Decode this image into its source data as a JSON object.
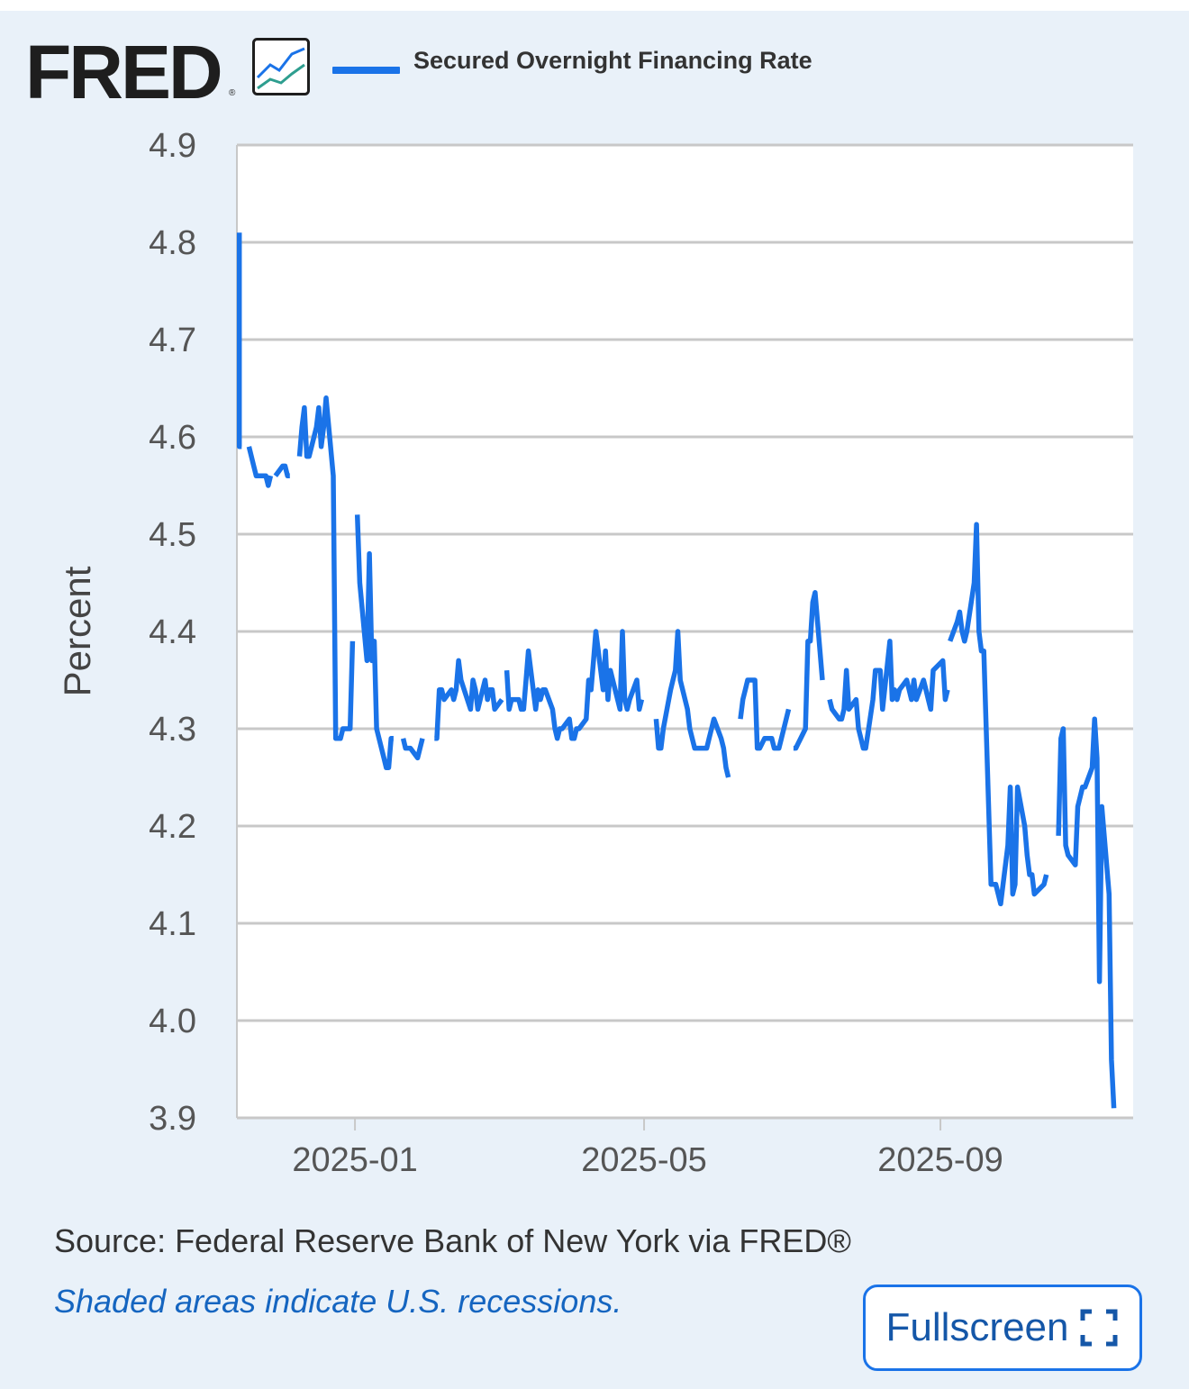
{
  "header": {
    "logo_text": "FRED",
    "logo_registered": "®",
    "legend_label": "Secured Overnight Financing Rate",
    "series_color": "#1a73e8"
  },
  "footer": {
    "source": "Source: Federal Reserve Bank of New York via FRED®",
    "recession_note": "Shaded areas indicate U.S. recessions.",
    "fullscreen_label": "Fullscreen"
  },
  "chart_data": {
    "type": "line",
    "ylabel": "Percent",
    "xlabel": "",
    "ylim": [
      3.9,
      4.9
    ],
    "yticks": [
      "3.9",
      "4.0",
      "4.1",
      "4.2",
      "4.3",
      "4.4",
      "4.5",
      "4.6",
      "4.7",
      "4.8",
      "4.9"
    ],
    "xlim": [
      "2024-11-13",
      "2025-11-20"
    ],
    "xticks": [
      "2025-01",
      "2025-05",
      "2025-09"
    ],
    "grid": true,
    "legend_position": "top",
    "series": [
      {
        "name": "Secured Overnight Financing Rate",
        "color": "#1a73e8",
        "segments": [
          [
            [
              "2024-11-14",
              4.81
            ],
            [
              "2024-11-14",
              4.59
            ],
            [
              "2024-11-15",
              4.59
            ]
          ],
          [
            [
              "2024-11-18",
              4.59
            ],
            [
              "2024-11-20",
              4.57
            ],
            [
              "2024-11-21",
              4.56
            ],
            [
              "2024-11-22",
              4.56
            ],
            [
              "2024-11-25",
              4.56
            ],
            [
              "2024-11-26",
              4.55
            ],
            [
              "2024-11-27",
              4.56
            ]
          ],
          [
            [
              "2024-11-29",
              4.56
            ],
            [
              "2024-12-02",
              4.57
            ],
            [
              "2024-12-03",
              4.57
            ],
            [
              "2024-12-04",
              4.56
            ],
            [
              "2024-12-05",
              4.56
            ]
          ],
          [
            [
              "2024-12-09",
              4.58
            ],
            [
              "2024-12-10",
              4.61
            ],
            [
              "2024-12-11",
              4.63
            ],
            [
              "2024-12-12",
              4.58
            ],
            [
              "2024-12-13",
              4.58
            ],
            [
              "2024-12-16",
              4.61
            ],
            [
              "2024-12-17",
              4.63
            ],
            [
              "2024-12-18",
              4.59
            ],
            [
              "2024-12-19",
              4.61
            ],
            [
              "2024-12-20",
              4.64
            ],
            [
              "2024-12-23",
              4.56
            ],
            [
              "2024-12-24",
              4.29
            ],
            [
              "2024-12-26",
              4.29
            ],
            [
              "2024-12-27",
              4.3
            ],
            [
              "2024-12-30",
              4.3
            ],
            [
              "2024-12-31",
              4.39
            ]
          ],
          [
            [
              "2025-01-02",
              4.52
            ],
            [
              "2025-01-03",
              4.45
            ],
            [
              "2025-01-06",
              4.37
            ],
            [
              "2025-01-07",
              4.48
            ],
            [
              "2025-01-08",
              4.37
            ],
            [
              "2025-01-09",
              4.39
            ],
            [
              "2025-01-10",
              4.3
            ],
            [
              "2025-01-13",
              4.27
            ],
            [
              "2025-01-14",
              4.26
            ],
            [
              "2025-01-15",
              4.26
            ],
            [
              "2025-01-16",
              4.29
            ],
            [
              "2025-01-17",
              4.29
            ]
          ],
          [
            [
              "2025-01-21",
              4.29
            ],
            [
              "2025-01-22",
              4.28
            ],
            [
              "2025-01-23",
              4.28
            ],
            [
              "2025-01-24",
              4.28
            ],
            [
              "2025-01-27",
              4.27
            ],
            [
              "2025-01-28",
              4.28
            ],
            [
              "2025-01-29",
              4.29
            ]
          ],
          [
            [
              "2025-02-03",
              4.29
            ],
            [
              "2025-02-04",
              4.29
            ],
            [
              "2025-02-05",
              4.34
            ],
            [
              "2025-02-06",
              4.34
            ],
            [
              "2025-02-07",
              4.33
            ],
            [
              "2025-02-10",
              4.34
            ],
            [
              "2025-02-11",
              4.33
            ],
            [
              "2025-02-12",
              4.34
            ],
            [
              "2025-02-13",
              4.37
            ],
            [
              "2025-02-14",
              4.35
            ],
            [
              "2025-02-18",
              4.32
            ],
            [
              "2025-02-19",
              4.35
            ],
            [
              "2025-02-20",
              4.34
            ],
            [
              "2025-02-21",
              4.32
            ],
            [
              "2025-02-24",
              4.35
            ],
            [
              "2025-02-25",
              4.33
            ],
            [
              "2025-02-26",
              4.34
            ],
            [
              "2025-02-27",
              4.34
            ],
            [
              "2025-02-28",
              4.32
            ],
            [
              "2025-03-03",
              4.33
            ]
          ],
          [
            [
              "2025-03-05",
              4.36
            ],
            [
              "2025-03-06",
              4.32
            ],
            [
              "2025-03-07",
              4.33
            ],
            [
              "2025-03-10",
              4.33
            ],
            [
              "2025-03-11",
              4.32
            ],
            [
              "2025-03-12",
              4.32
            ],
            [
              "2025-03-13",
              4.35
            ],
            [
              "2025-03-14",
              4.38
            ],
            [
              "2025-03-17",
              4.32
            ],
            [
              "2025-03-18",
              4.34
            ],
            [
              "2025-03-19",
              4.33
            ],
            [
              "2025-03-20",
              4.34
            ],
            [
              "2025-03-21",
              4.34
            ],
            [
              "2025-03-24",
              4.32
            ],
            [
              "2025-03-25",
              4.3
            ],
            [
              "2025-03-26",
              4.29
            ],
            [
              "2025-03-27",
              4.3
            ],
            [
              "2025-03-28",
              4.3
            ],
            [
              "2025-03-31",
              4.31
            ],
            [
              "2025-04-01",
              4.29
            ],
            [
              "2025-04-02",
              4.29
            ],
            [
              "2025-04-03",
              4.3
            ],
            [
              "2025-04-04",
              4.3
            ],
            [
              "2025-04-07",
              4.31
            ],
            [
              "2025-04-08",
              4.35
            ],
            [
              "2025-04-09",
              4.34
            ],
            [
              "2025-04-10",
              4.37
            ],
            [
              "2025-04-11",
              4.4
            ],
            [
              "2025-04-14",
              4.34
            ],
            [
              "2025-04-15",
              4.38
            ],
            [
              "2025-04-16",
              4.33
            ],
            [
              "2025-04-17",
              4.36
            ],
            [
              "2025-04-21",
              4.32
            ],
            [
              "2025-04-22",
              4.4
            ],
            [
              "2025-04-23",
              4.33
            ],
            [
              "2025-04-24",
              4.32
            ],
            [
              "2025-04-25",
              4.33
            ],
            [
              "2025-04-28",
              4.35
            ],
            [
              "2025-04-29",
              4.32
            ],
            [
              "2025-04-30",
              4.33
            ]
          ],
          [
            [
              "2025-05-06",
              4.31
            ],
            [
              "2025-05-07",
              4.28
            ],
            [
              "2025-05-08",
              4.28
            ],
            [
              "2025-05-09",
              4.3
            ],
            [
              "2025-05-12",
              4.34
            ],
            [
              "2025-05-13",
              4.35
            ],
            [
              "2025-05-14",
              4.36
            ],
            [
              "2025-05-15",
              4.4
            ],
            [
              "2025-05-16",
              4.35
            ],
            [
              "2025-05-19",
              4.32
            ],
            [
              "2025-05-20",
              4.3
            ],
            [
              "2025-05-21",
              4.29
            ],
            [
              "2025-05-22",
              4.28
            ],
            [
              "2025-05-23",
              4.28
            ],
            [
              "2025-05-27",
              4.28
            ],
            [
              "2025-05-28",
              4.29
            ],
            [
              "2025-05-29",
              4.3
            ],
            [
              "2025-05-30",
              4.31
            ],
            [
              "2025-06-02",
              4.29
            ],
            [
              "2025-06-03",
              4.28
            ],
            [
              "2025-06-04",
              4.26
            ],
            [
              "2025-06-05",
              4.25
            ]
          ],
          [
            [
              "2025-06-10",
              4.31
            ],
            [
              "2025-06-11",
              4.33
            ],
            [
              "2025-06-12",
              4.34
            ],
            [
              "2025-06-13",
              4.35
            ],
            [
              "2025-06-16",
              4.35
            ],
            [
              "2025-06-17",
              4.28
            ],
            [
              "2025-06-18",
              4.28
            ],
            [
              "2025-06-20",
              4.29
            ],
            [
              "2025-06-23",
              4.29
            ],
            [
              "2025-06-24",
              4.28
            ],
            [
              "2025-06-25",
              4.28
            ],
            [
              "2025-06-26",
              4.28
            ],
            [
              "2025-06-27",
              4.29
            ],
            [
              "2025-06-30",
              4.32
            ]
          ],
          [
            [
              "2025-07-02",
              4.28
            ],
            [
              "2025-07-03",
              4.28
            ],
            [
              "2025-07-07",
              4.3
            ],
            [
              "2025-07-08",
              4.39
            ],
            [
              "2025-07-09",
              4.39
            ],
            [
              "2025-07-10",
              4.43
            ],
            [
              "2025-07-11",
              4.44
            ],
            [
              "2025-07-14",
              4.35
            ]
          ],
          [
            [
              "2025-07-17",
              4.33
            ],
            [
              "2025-07-18",
              4.32
            ],
            [
              "2025-07-21",
              4.31
            ],
            [
              "2025-07-22",
              4.31
            ],
            [
              "2025-07-23",
              4.32
            ],
            [
              "2025-07-24",
              4.36
            ],
            [
              "2025-07-25",
              4.32
            ],
            [
              "2025-07-28",
              4.33
            ],
            [
              "2025-07-29",
              4.3
            ],
            [
              "2025-07-30",
              4.29
            ],
            [
              "2025-07-31",
              4.28
            ],
            [
              "2025-08-01",
              4.28
            ],
            [
              "2025-08-04",
              4.33
            ],
            [
              "2025-08-05",
              4.36
            ],
            [
              "2025-08-06",
              4.36
            ],
            [
              "2025-08-07",
              4.36
            ],
            [
              "2025-08-08",
              4.32
            ],
            [
              "2025-08-11",
              4.39
            ],
            [
              "2025-08-12",
              4.33
            ],
            [
              "2025-08-13",
              4.34
            ],
            [
              "2025-08-14",
              4.33
            ],
            [
              "2025-08-15",
              4.34
            ],
            [
              "2025-08-18",
              4.35
            ],
            [
              "2025-08-19",
              4.34
            ],
            [
              "2025-08-20",
              4.33
            ],
            [
              "2025-08-21",
              4.35
            ],
            [
              "2025-08-22",
              4.33
            ],
            [
              "2025-08-25",
              4.35
            ],
            [
              "2025-08-26",
              4.34
            ],
            [
              "2025-08-27",
              4.33
            ],
            [
              "2025-08-28",
              4.32
            ],
            [
              "2025-08-29",
              4.36
            ],
            [
              "2025-09-02",
              4.37
            ],
            [
              "2025-09-03",
              4.33
            ],
            [
              "2025-09-04",
              4.34
            ]
          ],
          [
            [
              "2025-09-05",
              4.39
            ],
            [
              "2025-09-08",
              4.41
            ],
            [
              "2025-09-09",
              4.42
            ],
            [
              "2025-09-10",
              4.4
            ],
            [
              "2025-09-11",
              4.39
            ],
            [
              "2025-09-12",
              4.4
            ],
            [
              "2025-09-15",
              4.45
            ],
            [
              "2025-09-16",
              4.51
            ],
            [
              "2025-09-17",
              4.4
            ],
            [
              "2025-09-18",
              4.38
            ],
            [
              "2025-09-19",
              4.38
            ],
            [
              "2025-09-22",
              4.14
            ],
            [
              "2025-09-23",
              4.14
            ],
            [
              "2025-09-24",
              4.14
            ],
            [
              "2025-09-25",
              4.13
            ],
            [
              "2025-09-26",
              4.12
            ],
            [
              "2025-09-29",
              4.18
            ],
            [
              "2025-09-30",
              4.24
            ],
            [
              "2025-10-01",
              4.13
            ],
            [
              "2025-10-02",
              4.14
            ],
            [
              "2025-10-03",
              4.24
            ],
            [
              "2025-10-06",
              4.2
            ],
            [
              "2025-10-07",
              4.17
            ],
            [
              "2025-10-08",
              4.15
            ],
            [
              "2025-10-09",
              4.15
            ],
            [
              "2025-10-10",
              4.13
            ],
            [
              "2025-10-14",
              4.14
            ],
            [
              "2025-10-15",
              4.15
            ]
          ],
          [
            [
              "2025-10-20",
              4.19
            ],
            [
              "2025-10-21",
              4.29
            ],
            [
              "2025-10-22",
              4.3
            ],
            [
              "2025-10-23",
              4.18
            ],
            [
              "2025-10-24",
              4.17
            ],
            [
              "2025-10-27",
              4.16
            ],
            [
              "2025-10-28",
              4.22
            ],
            [
              "2025-10-29",
              4.23
            ],
            [
              "2025-10-30",
              4.24
            ],
            [
              "2025-10-31",
              4.24
            ],
            [
              "2025-11-03",
              4.26
            ],
            [
              "2025-11-04",
              4.31
            ],
            [
              "2025-11-05",
              4.27
            ],
            [
              "2025-11-06",
              4.04
            ],
            [
              "2025-11-07",
              4.22
            ],
            [
              "2025-11-10",
              4.13
            ],
            [
              "2025-11-11",
              3.96
            ],
            [
              "2025-11-12",
              3.91
            ]
          ]
        ]
      }
    ]
  }
}
